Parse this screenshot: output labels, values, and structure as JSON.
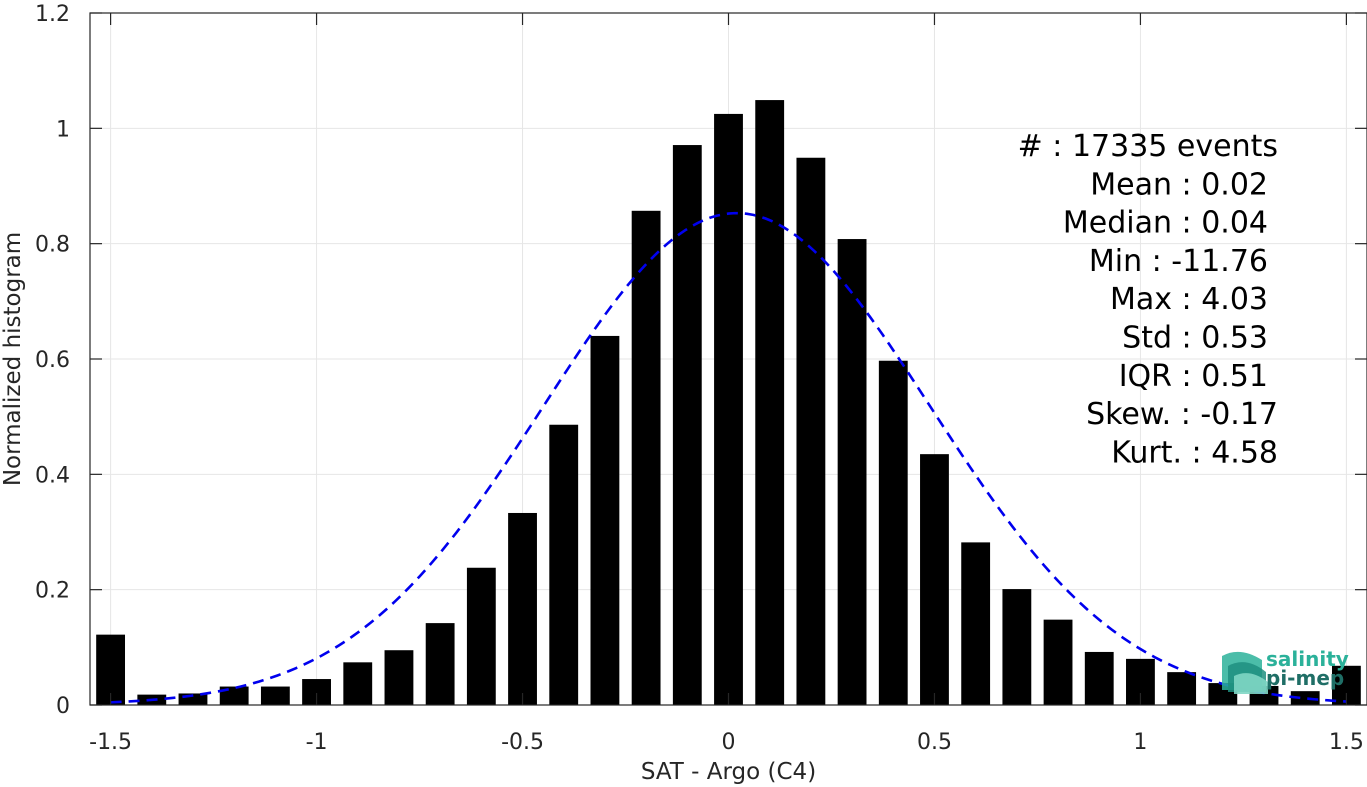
{
  "chart_data": {
    "type": "bar",
    "xlabel": "SAT - Argo (C4)",
    "ylabel": "Normalized histogram",
    "xlim": [
      -1.55,
      1.55
    ],
    "ylim": [
      0,
      1.2
    ],
    "x_ticks": [
      "-1.5",
      "-1",
      "-0.5",
      "0",
      "0.5",
      "1",
      "1.5"
    ],
    "y_ticks": [
      "0",
      "0.2",
      "0.4",
      "0.6",
      "0.8",
      "1",
      "1.2"
    ],
    "grid": true,
    "bar_color": "#000000",
    "bars": {
      "x": [
        -1.5,
        -1.4,
        -1.3,
        -1.2,
        -1.1,
        -1.0,
        -0.9,
        -0.8,
        -0.7,
        -0.6,
        -0.5,
        -0.4,
        -0.3,
        -0.2,
        -0.1,
        0.0,
        0.1,
        0.2,
        0.3,
        0.4,
        0.5,
        0.6,
        0.7,
        0.8,
        0.9,
        1.0,
        1.1,
        1.2,
        1.3,
        1.4,
        1.5
      ],
      "values": [
        0.122,
        0.018,
        0.02,
        0.032,
        0.032,
        0.045,
        0.074,
        0.095,
        0.142,
        0.238,
        0.333,
        0.486,
        0.64,
        0.857,
        0.971,
        1.025,
        1.049,
        0.949,
        0.808,
        0.597,
        0.435,
        0.282,
        0.201,
        0.148,
        0.092,
        0.08,
        0.057,
        0.038,
        0.033,
        0.024,
        0.068
      ]
    },
    "fit_curve": {
      "style": "dashed",
      "color": "#0000ee",
      "mean": 0.02,
      "std": 0.47,
      "peak": 0.853,
      "x_range": [
        -1.5,
        1.5
      ]
    },
    "stats_lines": [
      "#  : 17335 events",
      "Mean : 0.02",
      "Median : 0.04",
      "Min : -11.76",
      "Max : 4.03",
      "Std : 0.53",
      "IQR : 0.51",
      "Skew. : -0.17",
      "Kurt. : 4.58"
    ]
  },
  "logo": {
    "line1": "salinity",
    "line2": "pi-mep",
    "color1": "#2bb19a",
    "color2": "#1f6e66"
  }
}
